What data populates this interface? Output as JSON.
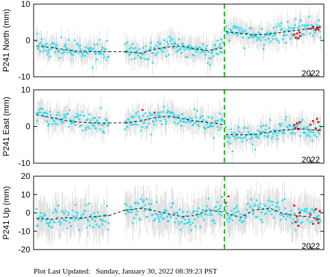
{
  "footer": {
    "label": "Plot Last Updated:",
    "timestamp": "Sunday, January 30, 2022 08:39:23 PST"
  },
  "colors": {
    "data_points": "#33ddee",
    "recent_points": "#ee1111",
    "error_bars": "#cccccc",
    "model_line": "#000000",
    "event_line": "#22bb22"
  },
  "chart_data": [
    {
      "type": "scatter",
      "ylabel": "P241 North (mm)",
      "ylim": [
        -10,
        10
      ],
      "yticks": [
        -10,
        0,
        10
      ],
      "x_range": [
        2011.8,
        2022.6
      ],
      "xtick_labels": [
        "2022"
      ],
      "gap": [
        2014.7,
        2015.1
      ],
      "event_x": 2018.9,
      "segments": [
        {
          "x": [
            2011.9,
            2012.5,
            2013.0,
            2013.5,
            2014.0,
            2014.6
          ],
          "y": [
            -1.5,
            -2.0,
            -2.6,
            -3.0,
            -3.1,
            -3.1
          ]
        },
        {
          "x": [
            2015.2,
            2015.8,
            2016.2,
            2016.8,
            2017.3,
            2017.8,
            2018.3,
            2018.85
          ],
          "y": [
            -3.1,
            -3.5,
            -2.6,
            -1.8,
            -1.5,
            -2.3,
            -2.8,
            -2.0
          ]
        },
        {
          "x": [
            2018.95,
            2019.5,
            2020.0,
            2020.6,
            2021.1,
            2021.6,
            2022.0,
            2022.5
          ],
          "y": [
            2.4,
            2.0,
            1.5,
            1.8,
            2.3,
            2.8,
            3.2,
            3.6
          ]
        }
      ],
      "scatter_std": 1.3,
      "error_bar_halfwidth": 3.5,
      "recent_points": [
        [
          2021.5,
          1.6
        ],
        [
          2021.55,
          0.8
        ],
        [
          2021.6,
          1.9
        ],
        [
          2021.65,
          0.6
        ],
        [
          2021.7,
          2.2
        ],
        [
          2021.72,
          1.2
        ],
        [
          2022.1,
          3.2
        ],
        [
          2022.2,
          3.8
        ],
        [
          2022.3,
          2.9
        ],
        [
          2022.35,
          3.5
        ],
        [
          2022.4,
          3.0
        ],
        [
          2022.45,
          3.7
        ]
      ]
    },
    {
      "type": "scatter",
      "ylabel": "P241 East (mm)",
      "ylim": [
        -10,
        10
      ],
      "yticks": [
        -10,
        0,
        10
      ],
      "x_range": [
        2011.8,
        2022.6
      ],
      "xtick_labels": [
        "2022"
      ],
      "gap": [
        2014.7,
        2015.1
      ],
      "event_x": 2018.9,
      "segments": [
        {
          "x": [
            2011.9,
            2012.5,
            2013.0,
            2013.5,
            2014.0,
            2014.6
          ],
          "y": [
            3.2,
            2.4,
            1.6,
            1.2,
            1.0,
            1.0
          ]
        },
        {
          "x": [
            2015.2,
            2015.8,
            2016.2,
            2016.8,
            2017.3,
            2017.8,
            2018.3,
            2018.85
          ],
          "y": [
            1.0,
            1.5,
            2.3,
            2.8,
            2.2,
            1.5,
            1.1,
            0.5
          ]
        },
        {
          "x": [
            2018.95,
            2019.5,
            2020.0,
            2020.6,
            2021.1,
            2021.6,
            2022.0,
            2022.5
          ],
          "y": [
            -2.2,
            -2.3,
            -2.2,
            -1.5,
            -1.0,
            -0.6,
            -0.8,
            -1.2
          ]
        }
      ],
      "scatter_std": 1.3,
      "error_bar_halfwidth": 3.5,
      "recent_points": [
        [
          2015.85,
          4.5
        ],
        [
          2016.3,
          3.8
        ],
        [
          2021.5,
          0.4
        ],
        [
          2021.55,
          -0.4
        ],
        [
          2021.6,
          0.9
        ],
        [
          2021.65,
          -0.7
        ],
        [
          2021.7,
          1.2
        ],
        [
          2022.1,
          0.5
        ],
        [
          2022.2,
          1.5
        ],
        [
          2022.3,
          -0.6
        ],
        [
          2022.35,
          2.1
        ],
        [
          2022.4,
          1.2
        ],
        [
          2022.45,
          -0.9
        ]
      ]
    },
    {
      "type": "scatter",
      "ylabel": "P241 Up (mm)",
      "ylim": [
        -20,
        20
      ],
      "yticks": [
        -20,
        -10,
        0,
        10,
        20
      ],
      "x_range": [
        2011.8,
        2022.6
      ],
      "xtick_labels": [
        "2022"
      ],
      "gap": [
        2014.7,
        2015.1
      ],
      "event_x": 2018.9,
      "segments": [
        {
          "x": [
            2011.9,
            2012.5,
            2013.0,
            2013.5,
            2014.0,
            2014.6
          ],
          "y": [
            -3.0,
            -3.5,
            -2.5,
            -3.0,
            -2.0,
            -1.5
          ]
        },
        {
          "x": [
            2015.2,
            2015.8,
            2016.2,
            2016.8,
            2017.3,
            2017.8,
            2018.3,
            2018.85
          ],
          "y": [
            1.5,
            2.5,
            1.5,
            -0.5,
            -2.0,
            -1.5,
            1.5,
            0.5
          ]
        },
        {
          "x": [
            2018.95,
            2019.5,
            2020.0,
            2020.6,
            2021.1,
            2021.6,
            2022.0,
            2022.5
          ],
          "y": [
            0.0,
            -2.5,
            1.5,
            2.5,
            -0.5,
            -1.5,
            -2.0,
            -3.5
          ]
        }
      ],
      "scatter_std": 3.5,
      "error_bar_halfwidth": 11,
      "recent_points": [
        [
          2018.95,
          5.5
        ],
        [
          2019.05,
          9.0
        ],
        [
          2021.5,
          4.0
        ],
        [
          2021.55,
          -5.0
        ],
        [
          2021.6,
          -2.0
        ],
        [
          2021.65,
          -7.0
        ],
        [
          2021.7,
          0.0
        ],
        [
          2022.1,
          -1.0
        ],
        [
          2022.2,
          -6.0
        ],
        [
          2022.3,
          2.0
        ],
        [
          2022.35,
          -3.5
        ],
        [
          2022.4,
          -5.5
        ],
        [
          2022.45,
          1.0
        ]
      ]
    }
  ]
}
